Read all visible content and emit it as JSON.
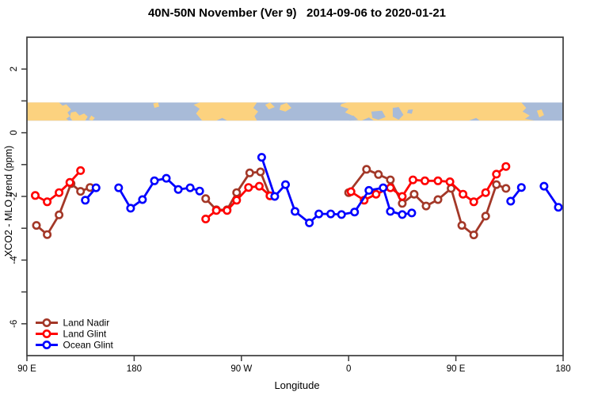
{
  "chart_data": {
    "type": "line",
    "title": "40N-50N November (Ver 9)   2014-09-06 to 2020-01-21",
    "xlabel": "Longitude",
    "ylabel": "XCO2 - MLO trend (ppm)",
    "xlim": [
      90,
      540
    ],
    "ylim": [
      -7,
      3
    ],
    "grid": "off",
    "legend_position": "bottom-left",
    "x_ticks": [
      {
        "value": 90,
        "label": "90 E"
      },
      {
        "value": 180,
        "label": "180"
      },
      {
        "value": 270,
        "label": "90 W"
      },
      {
        "value": 360,
        "label": "0"
      },
      {
        "value": 450,
        "label": "90 E"
      },
      {
        "value": 540,
        "label": "180"
      }
    ],
    "y_ticks": [
      {
        "value": 2,
        "label": "2"
      },
      {
        "value": 1,
        "label": ""
      },
      {
        "value": 0,
        "label": "0"
      },
      {
        "value": -1,
        "label": ""
      },
      {
        "value": -2,
        "label": "-2"
      },
      {
        "value": -3,
        "label": ""
      },
      {
        "value": -4,
        "label": "-4"
      },
      {
        "value": -5,
        "label": ""
      },
      {
        "value": -6,
        "label": "-6"
      }
    ],
    "series": [
      {
        "name": "Land Nadir",
        "color": "#A33828",
        "segments": [
          [
            [
              98,
              -2.91
            ],
            [
              107,
              -3.2
            ],
            [
              117,
              -2.58
            ],
            [
              127,
              -1.6
            ],
            [
              135,
              -1.84
            ],
            [
              143,
              -1.72
            ]
          ],
          [
            [
              240,
              -2.07
            ],
            [
              249,
              -2.42
            ],
            [
              258,
              -2.42
            ],
            [
              266,
              -1.88
            ],
            [
              277,
              -1.26
            ],
            [
              286,
              -1.23
            ],
            [
              294,
              -1.98
            ]
          ],
          [
            [
              360,
              -1.88
            ],
            [
              375,
              -1.15
            ],
            [
              385,
              -1.31
            ],
            [
              395,
              -1.48
            ],
            [
              405,
              -2.22
            ],
            [
              415,
              -1.93
            ],
            [
              425,
              -2.3
            ],
            [
              435,
              -2.1
            ],
            [
              446,
              -1.75
            ],
            [
              455,
              -2.91
            ],
            [
              465,
              -3.21
            ],
            [
              475,
              -2.62
            ],
            [
              484,
              -1.63
            ],
            [
              492,
              -1.75
            ]
          ]
        ]
      },
      {
        "name": "Land Glint",
        "color": "#FF0000",
        "segments": [
          [
            [
              97,
              -1.97
            ],
            [
              107,
              -2.17
            ],
            [
              117,
              -1.88
            ],
            [
              126,
              -1.56
            ],
            [
              135,
              -1.19
            ]
          ],
          [
            [
              240,
              -2.71
            ],
            [
              249,
              -2.44
            ],
            [
              258,
              -2.44
            ],
            [
              266,
              -2.12
            ],
            [
              276,
              -1.72
            ],
            [
              285,
              -1.68
            ],
            [
              294,
              -1.98
            ]
          ],
          [
            [
              362,
              -1.85
            ],
            [
              373,
              -2.12
            ],
            [
              383,
              -1.93
            ],
            [
              395,
              -1.73
            ],
            [
              405,
              -2.0
            ],
            [
              414,
              -1.48
            ],
            [
              424,
              -1.51
            ],
            [
              435,
              -1.51
            ],
            [
              445,
              -1.54
            ],
            [
              456,
              -1.93
            ],
            [
              465,
              -2.17
            ],
            [
              475,
              -1.88
            ],
            [
              484,
              -1.3
            ],
            [
              492,
              -1.06
            ]
          ]
        ]
      },
      {
        "name": "Ocean Glint",
        "color": "#0000FF",
        "segments": [
          [
            [
              139,
              -2.12
            ],
            [
              148,
              -1.73
            ]
          ],
          [
            [
              167,
              -1.73
            ],
            [
              177,
              -2.37
            ],
            [
              187,
              -2.1
            ],
            [
              197,
              -1.51
            ],
            [
              207,
              -1.43
            ],
            [
              217,
              -1.78
            ],
            [
              227,
              -1.73
            ],
            [
              235,
              -1.83
            ]
          ],
          [
            [
              287,
              -0.77
            ],
            [
              298,
              -2.0
            ],
            [
              307,
              -1.63
            ],
            [
              315,
              -2.47
            ],
            [
              327,
              -2.83
            ],
            [
              335,
              -2.55
            ],
            [
              345,
              -2.55
            ],
            [
              354,
              -2.57
            ],
            [
              365,
              -2.49
            ],
            [
              377,
              -1.81
            ],
            [
              389,
              -1.73
            ],
            [
              395,
              -2.47
            ],
            [
              405,
              -2.57
            ],
            [
              413,
              -2.52
            ]
          ],
          [
            [
              496,
              -2.15
            ],
            [
              505,
              -1.72
            ]
          ],
          [
            [
              524,
              -1.68
            ],
            [
              536,
              -2.34
            ]
          ]
        ]
      }
    ],
    "map_band": {
      "y_top": 0.95,
      "y_bottom": 0.38,
      "ocean_color": "#A8BBD8",
      "land_color": "#FCD27F",
      "land_polygons": [
        [
          [
            90,
            0
          ],
          [
            117,
            0
          ],
          [
            120,
            0.18
          ],
          [
            123,
            0.1
          ],
          [
            127,
            0.38
          ],
          [
            124,
            0.55
          ],
          [
            126,
            0.75
          ],
          [
            123,
            0.9
          ],
          [
            125,
            1
          ],
          [
            90,
            1
          ]
        ],
        [
          [
            127,
            0.55
          ],
          [
            131,
            0.5
          ],
          [
            134,
            0.72
          ],
          [
            138,
            0.6
          ],
          [
            141,
            0.78
          ],
          [
            139,
            1
          ],
          [
            128,
            1
          ],
          [
            126,
            0.8
          ]
        ],
        [
          [
            144,
            0.72
          ],
          [
            147,
            0.85
          ],
          [
            145,
            1
          ],
          [
            142,
            0.95
          ]
        ],
        [
          [
            196,
            0.05
          ],
          [
            200,
            0
          ],
          [
            201,
            0.22
          ],
          [
            197,
            0.3
          ]
        ],
        [
          [
            230,
            0.12
          ],
          [
            235,
            0
          ],
          [
            283,
            0
          ],
          [
            280,
            0.3
          ],
          [
            284,
            0.5
          ],
          [
            281,
            0.75
          ],
          [
            283,
            1
          ],
          [
            258,
            1
          ],
          [
            254,
            0.85
          ],
          [
            249,
            1
          ],
          [
            237,
            1
          ],
          [
            232,
            0.6
          ],
          [
            235,
            0.35
          ]
        ],
        [
          [
            290,
            0.12
          ],
          [
            294,
            0
          ],
          [
            298,
            0.25
          ],
          [
            293,
            0.38
          ]
        ],
        [
          [
            303,
            0.15
          ],
          [
            308,
            0.02
          ],
          [
            312,
            0.3
          ],
          [
            307,
            0.5
          ],
          [
            302,
            0.4
          ]
        ],
        [
          [
            354,
            0.08
          ],
          [
            359,
            0
          ],
          [
            505,
            0
          ],
          [
            509,
            0.3
          ],
          [
            506,
            0.5
          ],
          [
            512,
            0.72
          ],
          [
            508,
            0.9
          ],
          [
            516,
            1
          ],
          [
            470,
            1
          ],
          [
            467,
            0.85
          ],
          [
            461,
            1
          ],
          [
            381,
            1
          ],
          [
            377,
            0.82
          ],
          [
            371,
            1
          ],
          [
            360,
            0.95
          ],
          [
            363,
            0.72
          ],
          [
            357,
            0.55
          ],
          [
            360,
            0.35
          ],
          [
            353,
            0.2
          ]
        ],
        [
          [
            518,
            0.45
          ],
          [
            522,
            0.38
          ],
          [
            524,
            0.7
          ],
          [
            520,
            0.82
          ]
        ]
      ],
      "ocean_overlay_polygons": [
        [
          [
            379,
            0.5
          ],
          [
            388,
            0.45
          ],
          [
            391,
            0.8
          ],
          [
            385,
            0.95
          ],
          [
            380,
            0.85
          ]
        ],
        [
          [
            397,
            0.3
          ],
          [
            402,
            0.25
          ],
          [
            406,
            0.68
          ],
          [
            402,
            0.95
          ],
          [
            397,
            0.78
          ]
        ],
        [
          [
            410,
            0.4
          ],
          [
            414,
            0.38
          ],
          [
            413,
            0.62
          ],
          [
            409,
            0.58
          ]
        ],
        [
          [
            357,
            0.78
          ],
          [
            364,
            0.72
          ],
          [
            368,
            0.95
          ],
          [
            361,
            1
          ],
          [
            356,
            0.92
          ]
        ]
      ]
    },
    "frame_color": "#3C3C3C",
    "marker": "open-circle"
  }
}
